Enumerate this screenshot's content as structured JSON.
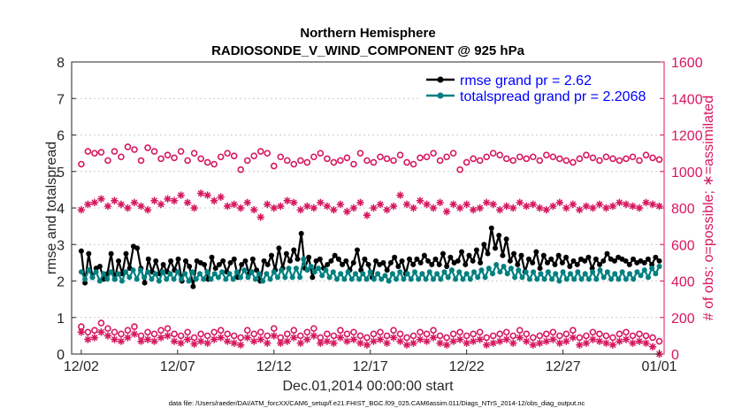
{
  "chart_data": {
    "type": "line",
    "title": "Northern Hemisphere",
    "subtitle": "RADIOSONDE_V_WIND_COMPONENT @ 925 hPa",
    "xlabel": "Dec.01,2014 00:00:00 start",
    "ylabel": "rmse and totalspread",
    "y2label": "# of obs: o=possible; ∗=assimilated",
    "x_tick_labels": [
      "12/02",
      "12/07",
      "12/12",
      "12/17",
      "12/22",
      "12/27",
      "01/01"
    ],
    "x_tick_days": [
      1,
      6,
      11,
      16,
      21,
      26,
      31
    ],
    "xlim": [
      0.5,
      31.25
    ],
    "ylim": [
      0,
      8
    ],
    "y_ticks": [
      "0",
      "1",
      "2",
      "3",
      "4",
      "5",
      "6",
      "7",
      "8"
    ],
    "y2lim": [
      0,
      1600
    ],
    "y2_ticks": [
      "0",
      "200",
      "400",
      "600",
      "800",
      "1000",
      "1200",
      "1400",
      "1600"
    ],
    "legend_position": "top-right",
    "grid": "horizontal-dashed",
    "colors": {
      "rmse": "#000000",
      "totalspread": "#008080",
      "obs": "#d6175f",
      "legend_text": "#0000ff"
    },
    "series": [
      {
        "name": "rmse grand pr = 2.62",
        "axis": "left",
        "color": "#000000",
        "marker": "filled-circle",
        "values": [
          2.82,
          1.95,
          2.75,
          2.1,
          2.35,
          2.4,
          2.05,
          2.2,
          2.75,
          2.05,
          2.55,
          2.2,
          2.75,
          2.35,
          2.95,
          2.9,
          2.35,
          1.95,
          2.6,
          2.25,
          2.55,
          2.2,
          2.45,
          2.25,
          2.55,
          2.3,
          2.6,
          2.0,
          2.55,
          2.4,
          1.85,
          2.55,
          2.5,
          2.45,
          2.05,
          2.65,
          2.35,
          2.45,
          2.55,
          2.25,
          2.5,
          2.6,
          2.1,
          2.45,
          2.55,
          2.2,
          2.6,
          2.3,
          2.0,
          2.55,
          2.45,
          2.7,
          2.3,
          2.9,
          2.35,
          2.75,
          2.55,
          2.85,
          2.6,
          3.3,
          2.35,
          2.65,
          2.1,
          2.55,
          2.6,
          2.35,
          2.45,
          2.55,
          2.7,
          2.6,
          2.45,
          2.55,
          2.3,
          2.5,
          2.85,
          2.3,
          2.6,
          2.45,
          2.1,
          2.55,
          2.45,
          2.5,
          2.3,
          2.5,
          2.65,
          2.4,
          2.55,
          2.2,
          2.6,
          2.45,
          2.6,
          2.5,
          2.7,
          2.55,
          2.45,
          2.6,
          2.45,
          2.75,
          2.4,
          2.65,
          2.5,
          2.55,
          2.8,
          2.45,
          2.7,
          2.55,
          2.85,
          2.5,
          3.0,
          2.75,
          3.45,
          2.9,
          3.25,
          2.7,
          3.15,
          2.55,
          2.75,
          2.45,
          2.7,
          2.25,
          2.6,
          2.5,
          2.8,
          2.35,
          2.7,
          2.5,
          2.6,
          2.45,
          2.7,
          2.5,
          2.65,
          2.4,
          2.55,
          2.45,
          2.6,
          2.55,
          2.65,
          2.35,
          2.6,
          2.45,
          2.55,
          2.75,
          2.6,
          2.55,
          2.65,
          2.6,
          2.55,
          2.45,
          2.6,
          2.5,
          2.55,
          2.5,
          2.6,
          2.45,
          2.65,
          2.55
        ]
      },
      {
        "name": "totalspread grand pr = 2.2068",
        "axis": "left",
        "color": "#008080",
        "marker": "filled-circle",
        "values": [
          2.25,
          2.05,
          2.3,
          2.1,
          2.25,
          2.0,
          2.2,
          2.05,
          2.25,
          2.05,
          2.2,
          2.0,
          2.25,
          2.1,
          2.3,
          2.05,
          2.3,
          2.1,
          2.25,
          2.05,
          2.2,
          2.0,
          2.25,
          2.05,
          2.2,
          2.05,
          2.25,
          2.05,
          2.2,
          2.0,
          2.25,
          2.05,
          2.2,
          2.05,
          2.25,
          2.05,
          2.2,
          2.1,
          2.25,
          2.05,
          2.2,
          2.05,
          2.25,
          2.1,
          2.3,
          2.1,
          2.25,
          2.05,
          2.2,
          2.0,
          2.2,
          2.05,
          2.25,
          2.1,
          2.3,
          2.1,
          2.35,
          2.1,
          2.35,
          2.1,
          2.6,
          2.3,
          2.4,
          2.25,
          2.35,
          2.15,
          2.3,
          2.1,
          2.25,
          2.05,
          2.2,
          2.05,
          2.25,
          2.05,
          2.2,
          2.05,
          2.2,
          2.05,
          2.25,
          2.05,
          2.2,
          2.05,
          2.15,
          2.0,
          2.2,
          2.05,
          2.25,
          2.05,
          2.2,
          2.05,
          2.25,
          2.05,
          2.2,
          2.05,
          2.25,
          2.05,
          2.2,
          2.05,
          2.25,
          2.1,
          2.3,
          2.05,
          2.25,
          2.05,
          2.2,
          2.05,
          2.25,
          2.1,
          2.3,
          2.1,
          2.35,
          2.2,
          2.45,
          2.25,
          2.4,
          2.2,
          2.35,
          2.1,
          2.3,
          2.1,
          2.25,
          2.05,
          2.25,
          2.05,
          2.2,
          2.05,
          2.25,
          2.05,
          2.2,
          2.0,
          2.25,
          2.05,
          2.2,
          2.05,
          2.25,
          2.05,
          2.2,
          2.05,
          2.25,
          2.05,
          2.3,
          2.1,
          2.25,
          2.05,
          2.2,
          2.05,
          2.25,
          2.05,
          2.2,
          2.05,
          2.25,
          2.15,
          2.3,
          2.1,
          2.35,
          2.2,
          2.4
        ]
      },
      {
        "name": "possible obs (upper)",
        "axis": "right",
        "color": "#d6175f",
        "marker": "open-circle",
        "values": [
          1040,
          1110,
          1100,
          1105,
          1060,
          1110,
          1080,
          1135,
          1120,
          1060,
          1130,
          1110,
          1070,
          1090,
          1075,
          1110,
          1060,
          1100,
          1070,
          1050,
          1040,
          1080,
          1100,
          1085,
          1010,
          1060,
          1085,
          1110,
          1100,
          1030,
          1080,
          1060,
          1040,
          1060,
          1050,
          1080,
          1100,
          1070,
          1050,
          1060,
          1075,
          1040,
          1100,
          1060,
          1050,
          1080,
          1070,
          1060,
          1090,
          1050,
          1040,
          1075,
          1080,
          1100,
          1060,
          1080,
          1100,
          1010,
          1050,
          1070,
          1060,
          1080,
          1100,
          1090,
          1070,
          1060,
          1080,
          1070,
          1080,
          1060,
          1090,
          1080,
          1070,
          1060,
          1050,
          1070,
          1090,
          1075,
          1060,
          1080,
          1070,
          1060,
          1070,
          1080,
          1060,
          1090,
          1075,
          1065
        ]
      },
      {
        "name": "assimilated obs (upper)",
        "axis": "right",
        "color": "#d6175f",
        "marker": "asterisk",
        "values": [
          790,
          820,
          830,
          850,
          810,
          840,
          820,
          800,
          830,
          810,
          790,
          840,
          820,
          850,
          840,
          870,
          830,
          800,
          880,
          870,
          840,
          860,
          810,
          820,
          800,
          830,
          790,
          750,
          820,
          800,
          810,
          840,
          830,
          790,
          810,
          800,
          830,
          810,
          790,
          820,
          780,
          800,
          830,
          760,
          800,
          820,
          790,
          810,
          870,
          820,
          800,
          840,
          820,
          800,
          830,
          780,
          820,
          800,
          820,
          790,
          800,
          830,
          820,
          790,
          810,
          800,
          830,
          810,
          820,
          800,
          790,
          810,
          830,
          800,
          820,
          790,
          810,
          800,
          820,
          800,
          810,
          830,
          820,
          810,
          800,
          830,
          820,
          810
        ]
      },
      {
        "name": "possible obs (lower)",
        "axis": "right",
        "color": "#d6175f",
        "marker": "open-circle",
        "values": [
          150,
          120,
          130,
          170,
          140,
          120,
          110,
          130,
          150,
          100,
          120,
          110,
          130,
          140,
          110,
          100,
          120,
          90,
          110,
          100,
          120,
          130,
          110,
          100,
          90,
          130,
          110,
          120,
          100,
          140,
          90,
          110,
          130,
          100,
          120,
          140,
          90,
          110,
          100,
          130,
          110,
          120,
          100,
          90,
          110,
          120,
          100,
          130,
          110,
          90,
          100,
          120,
          110,
          130,
          100,
          90,
          110,
          120,
          100,
          110,
          120,
          90,
          100,
          110,
          120,
          100,
          130,
          110,
          90,
          100,
          110,
          120,
          100,
          110,
          130,
          90,
          100,
          120,
          110,
          100,
          90,
          110,
          120,
          100,
          110,
          100,
          90,
          70
        ]
      },
      {
        "name": "assimilated obs (lower)",
        "axis": "right",
        "color": "#d6175f",
        "marker": "asterisk",
        "values": [
          120,
          80,
          90,
          120,
          100,
          80,
          70,
          90,
          110,
          70,
          80,
          70,
          90,
          100,
          70,
          60,
          80,
          55,
          70,
          60,
          80,
          90,
          70,
          60,
          50,
          90,
          70,
          80,
          60,
          100,
          60,
          70,
          90,
          60,
          80,
          100,
          60,
          70,
          60,
          90,
          70,
          80,
          60,
          50,
          70,
          80,
          60,
          90,
          70,
          50,
          60,
          80,
          70,
          90,
          60,
          50,
          70,
          80,
          60,
          70,
          80,
          50,
          60,
          70,
          80,
          60,
          90,
          70,
          50,
          60,
          70,
          80,
          60,
          70,
          90,
          50,
          60,
          80,
          70,
          60,
          50,
          70,
          80,
          60,
          70,
          60,
          40,
          0
        ]
      }
    ]
  },
  "legend": {
    "rmse_label": "rmse grand pr = 2.62",
    "spread_label": "totalspread grand pr = 2.2068"
  },
  "footer": {
    "text": "data file: /Users/raeder/DAI/ATM_forcXX/CAM6_setup/f.e21.FHIST_BGC.f09_025.CAM6assim.011/Diags_NTrS_2014-12/obs_diag_output.nc"
  }
}
